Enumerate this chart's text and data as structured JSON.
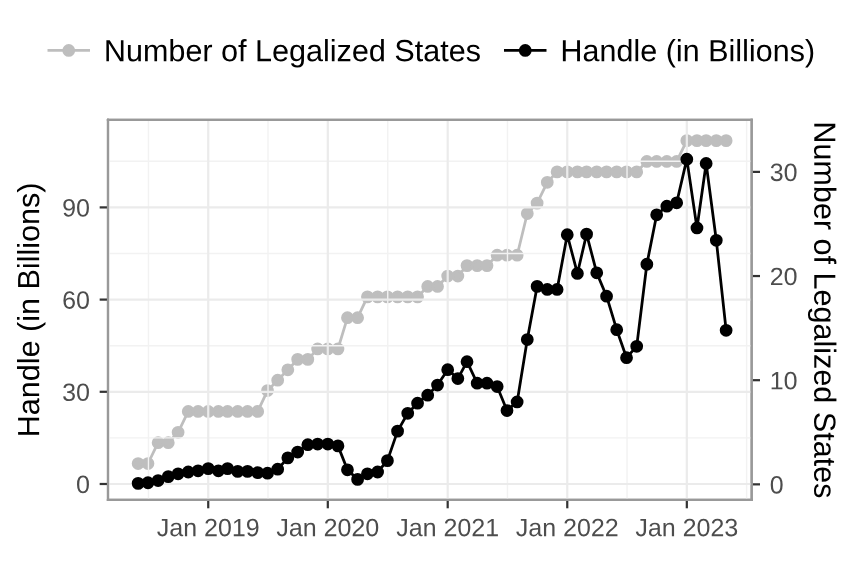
{
  "chart_data": {
    "type": "line",
    "xlabel": null,
    "ylabel": "Handle (in Billions)",
    "y2label": "Number of Legalized States",
    "x": [
      "2018-06",
      "2018-07",
      "2018-08",
      "2018-09",
      "2018-10",
      "2018-11",
      "2018-12",
      "2019-01",
      "2019-02",
      "2019-03",
      "2019-04",
      "2019-05",
      "2019-06",
      "2019-07",
      "2019-08",
      "2019-09",
      "2019-10",
      "2019-11",
      "2019-12",
      "2020-01",
      "2020-02",
      "2020-03",
      "2020-04",
      "2020-05",
      "2020-06",
      "2020-07",
      "2020-08",
      "2020-09",
      "2020-10",
      "2020-11",
      "2020-12",
      "2021-01",
      "2021-02",
      "2021-03",
      "2021-04",
      "2021-05",
      "2021-06",
      "2021-07",
      "2021-08",
      "2021-09",
      "2021-10",
      "2021-11",
      "2021-12",
      "2022-01",
      "2022-02",
      "2022-03",
      "2022-04",
      "2022-05",
      "2022-06",
      "2022-07",
      "2022-08",
      "2022-09",
      "2022-10",
      "2022-11",
      "2022-12",
      "2023-01",
      "2023-02",
      "2023-03",
      "2023-04",
      "2023-05"
    ],
    "series": [
      {
        "name": "Number of Legalized States",
        "color": "#bebebe",
        "axis": "y2",
        "values": [
          2,
          2,
          4,
          4,
          5,
          7,
          7,
          7,
          7,
          7,
          7,
          7,
          7,
          9,
          10,
          11,
          12,
          12,
          13,
          13,
          13,
          16,
          16,
          18,
          18,
          18,
          18,
          18,
          18,
          19,
          19,
          20,
          20,
          21,
          21,
          21,
          22,
          22,
          22,
          26,
          27,
          29,
          30,
          30,
          30,
          30,
          30,
          30,
          30,
          30,
          30,
          31,
          31,
          31,
          31,
          33,
          33,
          33,
          33,
          33
        ]
      },
      {
        "name": "Handle (in Billions)",
        "color": "#000000",
        "axis": "y",
        "values": [
          0.2,
          0.4,
          1.1,
          2.4,
          3.3,
          3.9,
          4.3,
          5.0,
          4.3,
          5.0,
          4.1,
          4.1,
          3.7,
          3.5,
          4.8,
          8.5,
          10.4,
          12.8,
          13.0,
          13.0,
          12.4,
          4.6,
          1.5,
          3.3,
          3.9,
          7.6,
          17.2,
          23.0,
          26.3,
          28.9,
          32.2,
          37.2,
          34.3,
          39.8,
          32.8,
          32.8,
          31.7,
          23.9,
          26.7,
          47.0,
          64.3,
          63.3,
          63.3,
          81.1,
          68.5,
          81.3,
          68.7,
          61.1,
          50.2,
          41.1,
          44.8,
          71.5,
          87.6,
          90.4,
          91.5,
          105.7,
          83.3,
          104.3,
          79.3,
          50.0
        ]
      }
    ],
    "xlim": [
      "2018-03-01",
      "2023-07-18"
    ],
    "xticks": [
      {
        "value": "2019-01",
        "label": "Jan 2019"
      },
      {
        "value": "2020-01",
        "label": "Jan 2020"
      },
      {
        "value": "2021-01",
        "label": "Jan 2021"
      },
      {
        "value": "2022-01",
        "label": "Jan 2022"
      },
      {
        "value": "2023-01",
        "label": "Jan 2023"
      }
    ],
    "ylim": [
      -5.2,
      118.5
    ],
    "yticks": [
      0,
      30,
      60,
      90
    ],
    "y2lim": [
      -1.5,
      35
    ],
    "y2ticks": [
      0,
      10,
      20,
      30
    ],
    "grid": true,
    "legend": "top",
    "marker": "circle",
    "line_style": "solid"
  }
}
